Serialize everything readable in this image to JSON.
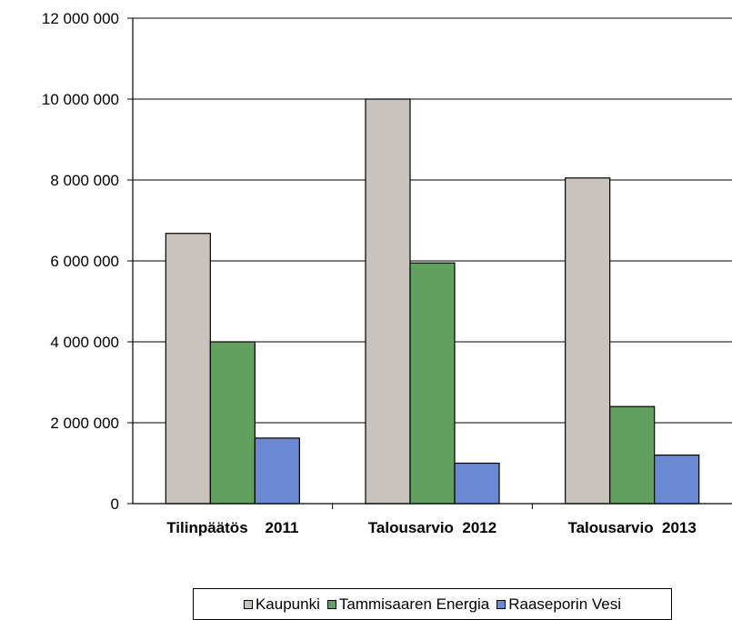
{
  "chart_data": {
    "type": "bar",
    "categories": [
      "Tilinpäätös    2011",
      "Talousarvio  2012",
      "Talousarvio  2013"
    ],
    "series": [
      {
        "name": "Kaupunki",
        "color": "#c8c4bd",
        "values": [
          6680000,
          10000000,
          8050000
        ]
      },
      {
        "name": "Tammisaaren Energia",
        "color": "#62a060",
        "values": [
          4000000,
          5950000,
          2400000
        ]
      },
      {
        "name": "Raaseporin Vesi",
        "color": "#6b88d2",
        "values": [
          1620000,
          1000000,
          1200000
        ]
      }
    ],
    "y_ticks": [
      0,
      2000000,
      4000000,
      6000000,
      8000000,
      10000000,
      12000000
    ],
    "y_tick_labels": [
      "0",
      "2 000 000",
      "4 000 000",
      "6 000 000",
      "8 000 000",
      "10 000 000",
      "12 000 000"
    ],
    "ylim": [
      0,
      12000000
    ],
    "grid": true,
    "legend_position": "bottom"
  }
}
